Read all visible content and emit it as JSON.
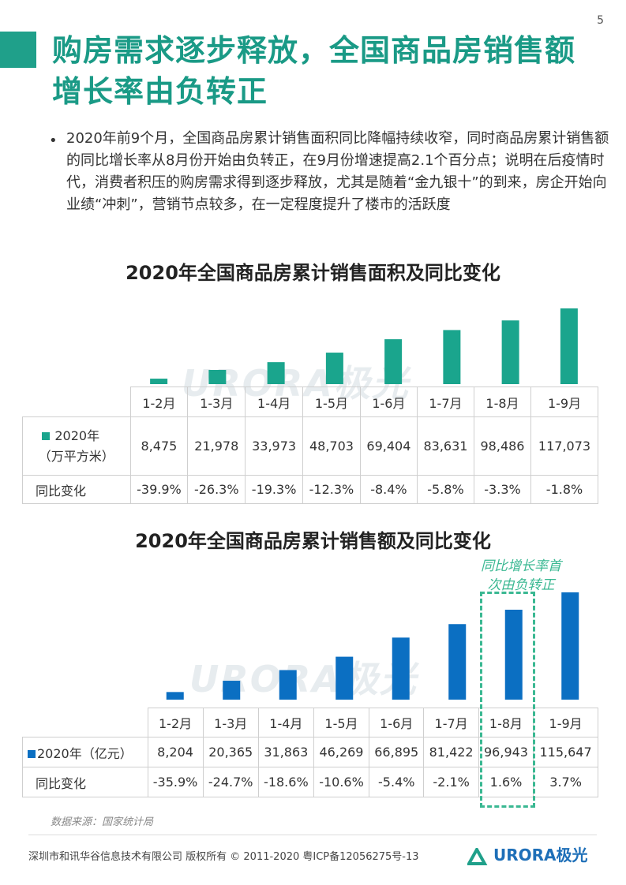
{
  "page_number": "5",
  "title": "购房需求逐步释放，全国商品房销售额增长率由负转正",
  "bullet": "•",
  "paragraph": "2020年前9个月，全国商品房累计销售面积同比降幅持续收窄，同时商品房累计销售额的同比增长率从8月份开始由负转正，在9月份增速提高2.1个百分点；说明在后疫情时代，消费者积压的购房需求得到逐步释放，尤其是随着“金九银十”的到来，房企开始向业绩“冲刺”，营销节点较多，在一定程度提升了楼市的活跃度",
  "watermark": "URORA极光",
  "chart_data": [
    {
      "type": "bar",
      "title": "2020年全国商品房累计销售面积及同比变化",
      "categories": [
        "1-2月",
        "1-3月",
        "1-4月",
        "1-5月",
        "1-6月",
        "1-7月",
        "1-8月",
        "1-9月"
      ],
      "series": [
        {
          "name": "2020年（万平方米）",
          "values": [
            8475,
            21978,
            33973,
            48703,
            69404,
            83631,
            98486,
            117073
          ]
        }
      ],
      "series_label_line1": "2020年",
      "series_label_line2": "（万平方米）",
      "values_text": [
        "8,475",
        "21,978",
        "33,973",
        "48,703",
        "69,404",
        "83,631",
        "98,486",
        "117,073"
      ],
      "yoy_label": "同比变化",
      "yoy": [
        "-39.9%",
        "-26.3%",
        "-19.3%",
        "-12.3%",
        "-8.4%",
        "-5.8%",
        "-3.3%",
        "-1.8%"
      ],
      "color": "#1aa58d"
    },
    {
      "type": "bar",
      "title": "2020年全国商品房累计销售额及同比变化",
      "categories": [
        "1-2月",
        "1-3月",
        "1-4月",
        "1-5月",
        "1-6月",
        "1-7月",
        "1-8月",
        "1-9月"
      ],
      "series": [
        {
          "name": "2020年（亿元）",
          "values": [
            8204,
            20365,
            31863,
            46269,
            66895,
            81422,
            96943,
            115647
          ]
        }
      ],
      "values_text": [
        "8,204",
        "20,365",
        "31,863",
        "46,269",
        "66,895",
        "81,422",
        "96,943",
        "115,647"
      ],
      "yoy_label": "同比变化",
      "yoy": [
        "-35.9%",
        "-24.7%",
        "-18.6%",
        "-10.6%",
        "-5.4%",
        "-2.1%",
        "1.6%",
        "3.7%"
      ],
      "color": "#0b6fc2",
      "annotation_line1": "同比增长率首",
      "annotation_line2": "次由负转正"
    }
  ],
  "source": "数据来源：国家统计局",
  "footer": "深圳市和讯华谷信息技术有限公司 版权所有 © 2011-2020 粤ICP备12056275号-13",
  "logo_text": "URORA极光",
  "colors": {
    "teal": "#1aa58d",
    "blue": "#0b6fc2",
    "green_dash": "#3ab892"
  }
}
